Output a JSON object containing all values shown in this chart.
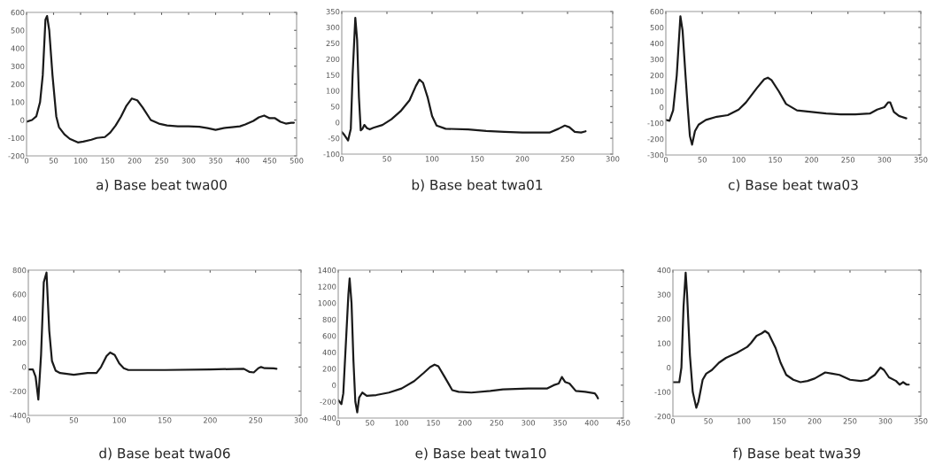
{
  "chart_data": [
    {
      "type": "line",
      "title": "a) Base beat twa00",
      "xlim": [
        0,
        500
      ],
      "xticks": [
        0,
        50,
        100,
        150,
        200,
        250,
        300,
        350,
        400,
        450,
        500
      ],
      "ylim": [
        -200,
        600
      ],
      "yticks": [
        -200,
        -100,
        0,
        100,
        200,
        300,
        400,
        500,
        600
      ],
      "series": [
        {
          "color": "#1a1a1a",
          "x": [
            0,
            10,
            18,
            25,
            30,
            35,
            38,
            42,
            48,
            55,
            60,
            70,
            80,
            95,
            105,
            120,
            130,
            145,
            155,
            165,
            175,
            185,
            195,
            205,
            215,
            230,
            245,
            260,
            280,
            300,
            320,
            335,
            350,
            365,
            380,
            395,
            405,
            420,
            430,
            440,
            450,
            460,
            470,
            480,
            490,
            495
          ],
          "values": [
            -10,
            0,
            20,
            100,
            250,
            560,
            580,
            500,
            250,
            20,
            -40,
            -80,
            -105,
            -125,
            -120,
            -110,
            -100,
            -95,
            -70,
            -30,
            20,
            80,
            120,
            110,
            70,
            0,
            -20,
            -30,
            -35,
            -35,
            -38,
            -45,
            -55,
            -45,
            -40,
            -35,
            -25,
            -5,
            15,
            25,
            10,
            10,
            -10,
            -20,
            -15,
            -15
          ]
        }
      ]
    },
    {
      "type": "line",
      "title": "b) Base beat twa01",
      "xlim": [
        0,
        300
      ],
      "xticks": [
        0,
        50,
        100,
        150,
        200,
        250,
        300
      ],
      "ylim": [
        -100,
        350
      ],
      "yticks": [
        -100,
        -50,
        0,
        50,
        100,
        150,
        200,
        250,
        300,
        350
      ],
      "series": [
        {
          "color": "#1a1a1a",
          "x": [
            0,
            3,
            7,
            10,
            12,
            15,
            17,
            19,
            21,
            23,
            25,
            28,
            31,
            35,
            45,
            55,
            65,
            75,
            82,
            86,
            90,
            95,
            100,
            105,
            115,
            140,
            160,
            180,
            200,
            230,
            240,
            247,
            252,
            258,
            265,
            270
          ],
          "values": [
            -30,
            -40,
            -57,
            -20,
            150,
            330,
            260,
            80,
            -25,
            -20,
            -8,
            -18,
            -22,
            -17,
            -8,
            10,
            35,
            70,
            115,
            135,
            125,
            80,
            20,
            -10,
            -20,
            -22,
            -27,
            -30,
            -32,
            -32,
            -20,
            -10,
            -15,
            -30,
            -32,
            -28
          ]
        }
      ]
    },
    {
      "type": "line",
      "title": "c) Base beat twa03",
      "xlim": [
        0,
        350
      ],
      "xticks": [
        0,
        50,
        100,
        150,
        200,
        250,
        300,
        350
      ],
      "ylim": [
        -300,
        600
      ],
      "yticks": [
        -300,
        -200,
        -100,
        0,
        100,
        200,
        300,
        400,
        500,
        600
      ],
      "series": [
        {
          "color": "#1a1a1a",
          "x": [
            0,
            5,
            10,
            15,
            20,
            23,
            27,
            30,
            33,
            36,
            40,
            45,
            55,
            70,
            85,
            100,
            110,
            125,
            135,
            140,
            145,
            155,
            165,
            180,
            200,
            220,
            240,
            260,
            280,
            290,
            300,
            305,
            308,
            313,
            320,
            330
          ],
          "values": [
            -80,
            -85,
            -20,
            200,
            570,
            480,
            200,
            0,
            -180,
            -235,
            -150,
            -110,
            -80,
            -60,
            -50,
            -15,
            30,
            120,
            175,
            185,
            170,
            100,
            20,
            -20,
            -30,
            -40,
            -45,
            -45,
            -40,
            -15,
            0,
            30,
            30,
            -30,
            -55,
            -70
          ]
        }
      ]
    },
    {
      "type": "line",
      "title": "d) Base beat twa06",
      "xlim": [
        0,
        300
      ],
      "xticks": [
        0,
        50,
        100,
        150,
        200,
        250,
        300
      ],
      "ylim": [
        -400,
        800
      ],
      "yticks": [
        -400,
        -200,
        0,
        200,
        400,
        600,
        800
      ],
      "series": [
        {
          "color": "#1a1a1a",
          "x": [
            0,
            5,
            8,
            11,
            14,
            17,
            20,
            23,
            26,
            30,
            35,
            50,
            65,
            75,
            80,
            86,
            90,
            95,
            100,
            105,
            110,
            150,
            200,
            237,
            243,
            248,
            253,
            256,
            260,
            270,
            273
          ],
          "values": [
            -20,
            -20,
            -80,
            -270,
            100,
            700,
            780,
            300,
            50,
            -30,
            -50,
            -65,
            -50,
            -50,
            0,
            90,
            120,
            100,
            30,
            -10,
            -25,
            -25,
            -20,
            -15,
            -40,
            -45,
            -10,
            0,
            -10,
            -12,
            -15
          ]
        }
      ]
    },
    {
      "type": "line",
      "title": "e) Base beat twa10",
      "xlim": [
        0,
        450
      ],
      "xticks": [
        0,
        50,
        100,
        150,
        200,
        250,
        300,
        350,
        400,
        450
      ],
      "ylim": [
        -400,
        1400
      ],
      "yticks": [
        -400,
        -200,
        0,
        200,
        400,
        600,
        800,
        1000,
        1200,
        1400
      ],
      "series": [
        {
          "color": "#1a1a1a",
          "x": [
            0,
            5,
            8,
            12,
            16,
            18,
            21,
            24,
            27,
            30,
            33,
            38,
            45,
            60,
            80,
            100,
            120,
            135,
            145,
            152,
            158,
            168,
            180,
            190,
            210,
            240,
            260,
            300,
            330,
            340,
            348,
            353,
            358,
            365,
            375,
            390,
            405,
            408,
            410
          ],
          "values": [
            -180,
            -230,
            -100,
            500,
            1100,
            1300,
            1000,
            300,
            -200,
            -330,
            -150,
            -90,
            -130,
            -120,
            -90,
            -40,
            50,
            150,
            220,
            250,
            230,
            100,
            -60,
            -80,
            -90,
            -70,
            -50,
            -40,
            -40,
            0,
            20,
            100,
            40,
            20,
            -70,
            -80,
            -100,
            -130,
            -160
          ]
        }
      ]
    },
    {
      "type": "line",
      "title": "f) Base beat twa39",
      "xlim": [
        0,
        350
      ],
      "xticks": [
        0,
        50,
        100,
        150,
        200,
        250,
        300,
        350
      ],
      "ylim": [
        -200,
        400
      ],
      "yticks": [
        -200,
        -100,
        0,
        100,
        200,
        300,
        400
      ],
      "series": [
        {
          "color": "#1a1a1a",
          "x": [
            0,
            5,
            9,
            12,
            15,
            18,
            20,
            24,
            28,
            33,
            36,
            42,
            47,
            55,
            65,
            75,
            90,
            105,
            110,
            118,
            125,
            130,
            135,
            145,
            152,
            160,
            170,
            180,
            190,
            200,
            215,
            225,
            235,
            250,
            265,
            275,
            285,
            293,
            298,
            305,
            315,
            320,
            325,
            330,
            333
          ],
          "values": [
            -60,
            -60,
            -60,
            0,
            250,
            390,
            300,
            50,
            -100,
            -165,
            -140,
            -50,
            -25,
            -10,
            20,
            40,
            60,
            85,
            100,
            130,
            140,
            150,
            140,
            80,
            20,
            -30,
            -50,
            -60,
            -55,
            -45,
            -20,
            -25,
            -30,
            -50,
            -55,
            -50,
            -30,
            0,
            -10,
            -40,
            -55,
            -70,
            -60,
            -70,
            -70
          ]
        }
      ]
    }
  ]
}
